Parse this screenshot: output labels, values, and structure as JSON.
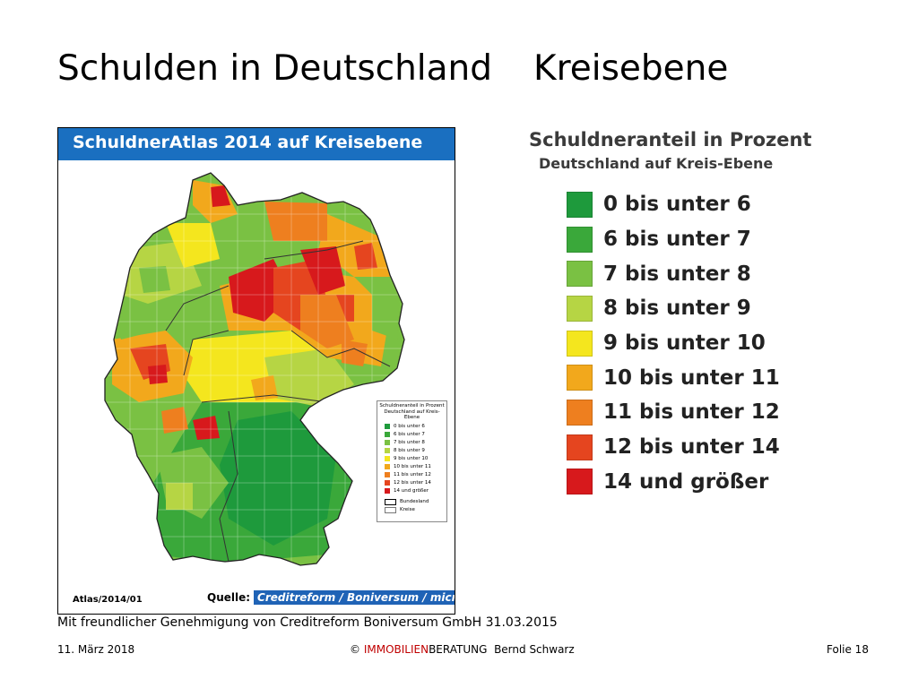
{
  "slide": {
    "title_part1": "Schulden in Deutschland",
    "title_part2": "Kreisebene"
  },
  "map": {
    "header": "SchuldnerAtlas 2014 auf Kreisebene",
    "atlas_label": "Atlas/2014/01",
    "source_label": "Quelle:",
    "source_brand": "Creditreform / Boniversum / microm",
    "mini_legend": {
      "title": "Schuldneranteil in Prozent",
      "subtitle": "Deutschland auf Kreis-Ebene",
      "items": [
        "0 bis unter 6",
        "6 bis unter 7",
        "7 bis unter 8",
        "8 bis unter 9",
        "9 bis unter 10",
        "10 bis unter 11",
        "11 bis unter 12",
        "12 bis unter 14",
        "14 und größer"
      ],
      "boundary_labels": [
        "Bundesland",
        "Kreise"
      ]
    }
  },
  "legend": {
    "title": "Schuldneranteil in Prozent",
    "subtitle": "Deutschland auf Kreis-Ebene",
    "items": [
      {
        "label": "0 bis unter 6",
        "color": "#1e9a3c"
      },
      {
        "label": "6 bis unter 7",
        "color": "#3aa83a"
      },
      {
        "label": "7 bis unter 8",
        "color": "#7ac143"
      },
      {
        "label": "8 bis unter 9",
        "color": "#b6d544"
      },
      {
        "label": "9 bis unter 10",
        "color": "#f4e61e"
      },
      {
        "label": "10 bis unter 11",
        "color": "#f2a81c"
      },
      {
        "label": "11 bis unter 12",
        "color": "#ee7f1f"
      },
      {
        "label": "12 bis unter 14",
        "color": "#e5451f"
      },
      {
        "label": "14 und größer",
        "color": "#d7191c"
      }
    ]
  },
  "footer": {
    "permission": "Mit freundlicher Genehmigung von Creditreform Boniversum GmbH 31.03.2015",
    "date": "11. März 2018",
    "copyright": "©",
    "company_red": "IMMOBILIEN",
    "company_rest": "BERATUNG",
    "author": "Bernd Schwarz",
    "slide_number": "Folie 18"
  }
}
